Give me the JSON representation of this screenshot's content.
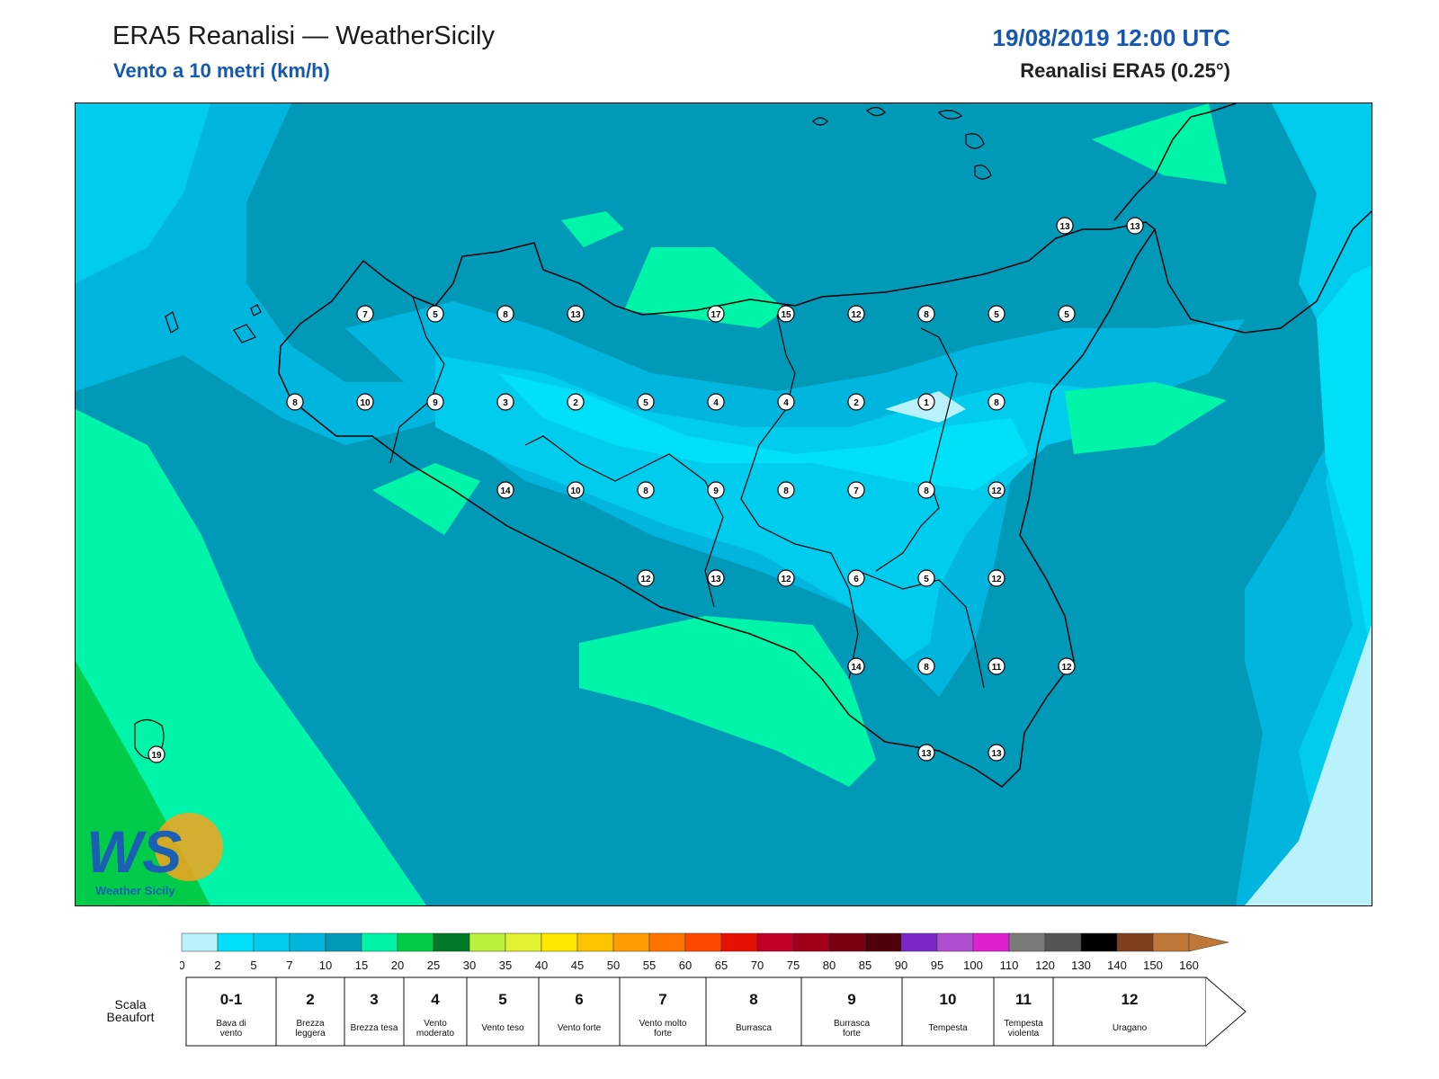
{
  "header": {
    "title": "ERA5 Reanalisi — WeatherSicily",
    "subtitle": "Vento a 10 metri (km/h)",
    "datetime": "19/08/2019 12:00 UTC",
    "source": "Reanalisi ERA5 (0.25°)"
  },
  "legend": {
    "ticks": [
      "0",
      "2",
      "5",
      "7",
      "10",
      "15",
      "20",
      "25",
      "30",
      "35",
      "40",
      "45",
      "50",
      "55",
      "60",
      "65",
      "70",
      "75",
      "80",
      "85",
      "90",
      "95",
      "100",
      "110",
      "120",
      "130",
      "140",
      "150",
      "160"
    ],
    "colors": [
      "#b9f2fb",
      "#00e0f8",
      "#00cdee",
      "#00b6de",
      "#0099b8",
      "#00f5a8",
      "#00cc4a",
      "#007a28",
      "#b8f23c",
      "#e2f230",
      "#ffe800",
      "#ffc400",
      "#ff9c00",
      "#ff7400",
      "#ff4800",
      "#e81000",
      "#c20028",
      "#a00018",
      "#780010",
      "#500008",
      "#7a28c8",
      "#b050d0",
      "#e020d0",
      "#7a7a7a",
      "#555555",
      "#000000",
      "#804020",
      "#c07838"
    ],
    "beaufort_label": "Scala Beaufort",
    "beaufort": [
      {
        "num": "0-1",
        "desc": "Bava di vento"
      },
      {
        "num": "2",
        "desc": "Brezza leggera"
      },
      {
        "num": "3",
        "desc": "Brezza tesa"
      },
      {
        "num": "4",
        "desc": "Vento moderato"
      },
      {
        "num": "5",
        "desc": "Vento teso"
      },
      {
        "num": "6",
        "desc": "Vento forte"
      },
      {
        "num": "7",
        "desc": "Vento molto forte"
      },
      {
        "num": "8",
        "desc": "Burrasca"
      },
      {
        "num": "9",
        "desc": "Burrasca forte"
      },
      {
        "num": "10",
        "desc": "Tempesta"
      },
      {
        "num": "11",
        "desc": "Tempesta violenta"
      },
      {
        "num": "12",
        "desc": "Uragano"
      }
    ]
  },
  "station_rows": [
    [
      "7",
      "5",
      "8",
      "13",
      "17",
      "15",
      "12",
      "8",
      "5",
      "5"
    ],
    [
      "8",
      "10",
      "9",
      "3",
      "2",
      "5",
      "4",
      "4",
      "2",
      "1",
      "8"
    ],
    [
      "14",
      "10",
      "8",
      "9",
      "8",
      "7",
      "8",
      "12"
    ],
    [
      "12",
      "13",
      "12",
      "6",
      "5",
      "12"
    ],
    [
      "14",
      "8",
      "11",
      "12"
    ],
    [
      "13",
      "13"
    ],
    [
      "13",
      "13"
    ],
    [
      "19"
    ]
  ],
  "logo": {
    "letters": "WS",
    "text": "Weather Sicily"
  }
}
